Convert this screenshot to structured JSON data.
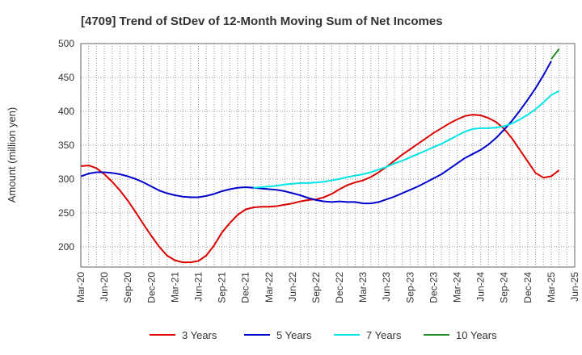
{
  "chart_data": {
    "type": "line",
    "title": "[4709]  Trend of StDev of 12-Month Moving Sum of Net Incomes",
    "ylabel": "Amount (million yen)",
    "xlabel": "",
    "ylim": [
      170,
      500
    ],
    "yticks": [
      200,
      250,
      300,
      350,
      400,
      450,
      500
    ],
    "x_range": [
      "2020-03",
      "2025-06"
    ],
    "xticks": [
      "Mar-20",
      "Jun-20",
      "Sep-20",
      "Dec-20",
      "Mar-21",
      "Jun-21",
      "Sep-21",
      "Dec-21",
      "Mar-22",
      "Jun-22",
      "Sep-22",
      "Dec-22",
      "Mar-23",
      "Jun-23",
      "Sep-23",
      "Dec-23",
      "Mar-24",
      "Jun-24",
      "Sep-24",
      "Dec-24",
      "Mar-25",
      "Jun-25"
    ],
    "grid": true,
    "legend_position": "bottom",
    "series": [
      {
        "name": "3 Years",
        "color": "#dd0000",
        "points": [
          [
            "2020-03",
            319
          ],
          [
            "2020-04",
            320
          ],
          [
            "2020-05",
            316
          ],
          [
            "2020-06",
            307
          ],
          [
            "2020-07",
            296
          ],
          [
            "2020-08",
            283
          ],
          [
            "2020-09",
            268
          ],
          [
            "2020-10",
            251
          ],
          [
            "2020-11",
            233
          ],
          [
            "2020-12",
            216
          ],
          [
            "2021-01",
            200
          ],
          [
            "2021-02",
            187
          ],
          [
            "2021-03",
            180
          ],
          [
            "2021-04",
            177
          ],
          [
            "2021-05",
            177
          ],
          [
            "2021-06",
            179
          ],
          [
            "2021-07",
            187
          ],
          [
            "2021-08",
            202
          ],
          [
            "2021-09",
            221
          ],
          [
            "2021-10",
            235
          ],
          [
            "2021-11",
            247
          ],
          [
            "2021-12",
            255
          ],
          [
            "2022-01",
            258
          ],
          [
            "2022-02",
            259
          ],
          [
            "2022-03",
            259
          ],
          [
            "2022-04",
            260
          ],
          [
            "2022-05",
            262
          ],
          [
            "2022-06",
            264
          ],
          [
            "2022-07",
            267
          ],
          [
            "2022-08",
            269
          ],
          [
            "2022-09",
            270
          ],
          [
            "2022-10",
            273
          ],
          [
            "2022-11",
            278
          ],
          [
            "2022-12",
            285
          ],
          [
            "2023-01",
            291
          ],
          [
            "2023-02",
            295
          ],
          [
            "2023-03",
            298
          ],
          [
            "2023-04",
            303
          ],
          [
            "2023-05",
            310
          ],
          [
            "2023-06",
            318
          ],
          [
            "2023-07",
            327
          ],
          [
            "2023-08",
            336
          ],
          [
            "2023-09",
            344
          ],
          [
            "2023-10",
            352
          ],
          [
            "2023-11",
            360
          ],
          [
            "2023-12",
            368
          ],
          [
            "2024-01",
            375
          ],
          [
            "2024-02",
            382
          ],
          [
            "2024-03",
            388
          ],
          [
            "2024-04",
            393
          ],
          [
            "2024-05",
            395
          ],
          [
            "2024-06",
            394
          ],
          [
            "2024-07",
            390
          ],
          [
            "2024-08",
            384
          ],
          [
            "2024-09",
            374
          ],
          [
            "2024-10",
            360
          ],
          [
            "2024-11",
            343
          ],
          [
            "2024-12",
            326
          ],
          [
            "2025-01",
            309
          ],
          [
            "2025-02",
            302
          ],
          [
            "2025-03",
            304
          ],
          [
            "2025-04",
            313
          ]
        ]
      },
      {
        "name": "5 Years",
        "color": "#0000cc",
        "points": [
          [
            "2020-03",
            304
          ],
          [
            "2020-04",
            308
          ],
          [
            "2020-05",
            310
          ],
          [
            "2020-06",
            310
          ],
          [
            "2020-07",
            309
          ],
          [
            "2020-08",
            307
          ],
          [
            "2020-09",
            304
          ],
          [
            "2020-10",
            300
          ],
          [
            "2020-11",
            295
          ],
          [
            "2020-12",
            289
          ],
          [
            "2021-01",
            283
          ],
          [
            "2021-02",
            279
          ],
          [
            "2021-03",
            276
          ],
          [
            "2021-04",
            274
          ],
          [
            "2021-05",
            273
          ],
          [
            "2021-06",
            273
          ],
          [
            "2021-07",
            275
          ],
          [
            "2021-08",
            278
          ],
          [
            "2021-09",
            282
          ],
          [
            "2021-10",
            285
          ],
          [
            "2021-11",
            287
          ],
          [
            "2021-12",
            288
          ],
          [
            "2022-01",
            287
          ],
          [
            "2022-02",
            286
          ],
          [
            "2022-03",
            285
          ],
          [
            "2022-04",
            284
          ],
          [
            "2022-05",
            282
          ],
          [
            "2022-06",
            279
          ],
          [
            "2022-07",
            276
          ],
          [
            "2022-08",
            272
          ],
          [
            "2022-09",
            269
          ],
          [
            "2022-10",
            267
          ],
          [
            "2022-11",
            266
          ],
          [
            "2022-12",
            267
          ],
          [
            "2023-01",
            266
          ],
          [
            "2023-02",
            266
          ],
          [
            "2023-03",
            264
          ],
          [
            "2023-04",
            264
          ],
          [
            "2023-05",
            266
          ],
          [
            "2023-06",
            270
          ],
          [
            "2023-07",
            274
          ],
          [
            "2023-08",
            279
          ],
          [
            "2023-09",
            284
          ],
          [
            "2023-10",
            289
          ],
          [
            "2023-11",
            295
          ],
          [
            "2023-12",
            301
          ],
          [
            "2024-01",
            307
          ],
          [
            "2024-02",
            315
          ],
          [
            "2024-03",
            323
          ],
          [
            "2024-04",
            331
          ],
          [
            "2024-05",
            337
          ],
          [
            "2024-06",
            343
          ],
          [
            "2024-07",
            351
          ],
          [
            "2024-08",
            361
          ],
          [
            "2024-09",
            373
          ],
          [
            "2024-10",
            386
          ],
          [
            "2024-11",
            401
          ],
          [
            "2024-12",
            417
          ],
          [
            "2025-01",
            434
          ],
          [
            "2025-02",
            453
          ],
          [
            "2025-03",
            474
          ]
        ]
      },
      {
        "name": "7 Years",
        "color": "#00e5e5",
        "points": [
          [
            "2022-01",
            287
          ],
          [
            "2022-02",
            288
          ],
          [
            "2022-03",
            289
          ],
          [
            "2022-04",
            290
          ],
          [
            "2022-05",
            292
          ],
          [
            "2022-06",
            293
          ],
          [
            "2022-07",
            294
          ],
          [
            "2022-08",
            294
          ],
          [
            "2022-09",
            295
          ],
          [
            "2022-10",
            296
          ],
          [
            "2022-11",
            298
          ],
          [
            "2022-12",
            300
          ],
          [
            "2023-01",
            303
          ],
          [
            "2023-02",
            305
          ],
          [
            "2023-03",
            307
          ],
          [
            "2023-04",
            310
          ],
          [
            "2023-05",
            314
          ],
          [
            "2023-06",
            318
          ],
          [
            "2023-07",
            323
          ],
          [
            "2023-08",
            327
          ],
          [
            "2023-09",
            332
          ],
          [
            "2023-10",
            337
          ],
          [
            "2023-11",
            342
          ],
          [
            "2023-12",
            347
          ],
          [
            "2024-01",
            352
          ],
          [
            "2024-02",
            358
          ],
          [
            "2024-03",
            364
          ],
          [
            "2024-04",
            370
          ],
          [
            "2024-05",
            374
          ],
          [
            "2024-06",
            375
          ],
          [
            "2024-07",
            375
          ],
          [
            "2024-08",
            376
          ],
          [
            "2024-09",
            378
          ],
          [
            "2024-10",
            382
          ],
          [
            "2024-11",
            388
          ],
          [
            "2024-12",
            395
          ],
          [
            "2025-01",
            403
          ],
          [
            "2025-02",
            413
          ],
          [
            "2025-03",
            424
          ],
          [
            "2025-04",
            430
          ]
        ]
      },
      {
        "name": "10 Years",
        "color": "#228b22",
        "points": [
          [
            "2025-03",
            477
          ],
          [
            "2025-04",
            492
          ]
        ]
      }
    ]
  }
}
